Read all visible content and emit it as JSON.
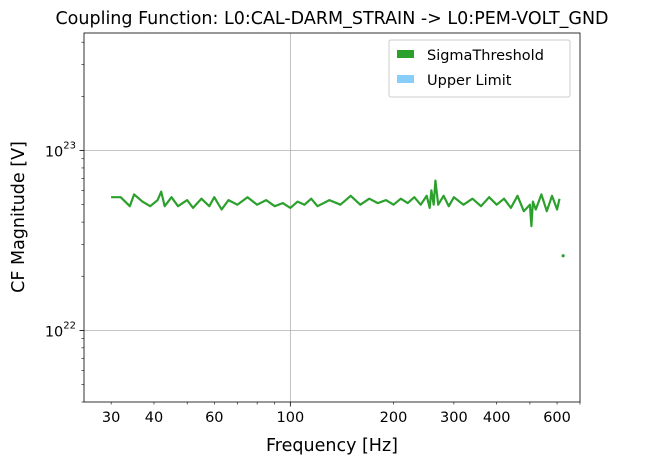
{
  "chart_data": {
    "type": "line",
    "title": "Coupling Function: L0:CAL-DARM_STRAIN -> L0:PEM-VOLT_GND",
    "xlabel": "Frequency [Hz]",
    "ylabel": "CF Magnitude [V]",
    "xscale": "log",
    "yscale": "log",
    "xlim": [
      25,
      700
    ],
    "ylim": [
      4e+21,
      4.5e+23
    ],
    "grid": true,
    "legend_position": "top-right",
    "x_ticks": [
      {
        "value": 30,
        "label": "30"
      },
      {
        "value": 40,
        "label": "40"
      },
      {
        "value": 60,
        "label": "60"
      },
      {
        "value": 100,
        "label": "100"
      },
      {
        "value": 200,
        "label": "200"
      },
      {
        "value": 300,
        "label": "300"
      },
      {
        "value": 400,
        "label": "400"
      },
      {
        "value": 600,
        "label": "600"
      }
    ],
    "y_ticks": [
      {
        "value": 1e+22,
        "base": "10",
        "exp": "22"
      },
      {
        "value": 1e+23,
        "base": "10",
        "exp": "23"
      }
    ],
    "series": [
      {
        "name": "SigmaThreshold",
        "color": "#2ca02c",
        "x": [
          30,
          32,
          34,
          35,
          37,
          39,
          41,
          42,
          43,
          45,
          47,
          50,
          52,
          55,
          58,
          60,
          63,
          66,
          70,
          75,
          80,
          85,
          90,
          95,
          100,
          105,
          110,
          115,
          120,
          130,
          140,
          150,
          160,
          170,
          180,
          190,
          200,
          210,
          220,
          230,
          240,
          250,
          255,
          258,
          262,
          265,
          270,
          280,
          290,
          300,
          320,
          340,
          360,
          380,
          400,
          420,
          440,
          460,
          480,
          500,
          505,
          510,
          520,
          540,
          560,
          580,
          600,
          610
        ],
        "y": [
          5.5e+22,
          5.5e+22,
          4.9e+22,
          5.7e+22,
          5.2e+22,
          4.9e+22,
          5.3e+22,
          5.9e+22,
          4.9e+22,
          5.5e+22,
          4.9e+22,
          5.3e+22,
          4.8e+22,
          5.4e+22,
          4.9e+22,
          5.5e+22,
          4.7e+22,
          5.3e+22,
          5e+22,
          5.5e+22,
          5e+22,
          5.3e+22,
          4.9e+22,
          5.1e+22,
          4.8e+22,
          5.2e+22,
          5e+22,
          5.4e+22,
          4.9e+22,
          5.3e+22,
          5e+22,
          5.6e+22,
          5e+22,
          5.4e+22,
          5.1e+22,
          5.3e+22,
          5e+22,
          5.4e+22,
          5.1e+22,
          5.5e+22,
          5e+22,
          5.6e+22,
          4.8e+22,
          6e+22,
          5e+22,
          6.8e+22,
          5e+22,
          5.6e+22,
          4.9e+22,
          5.5e+22,
          5e+22,
          5.4e+22,
          4.9e+22,
          5.5e+22,
          5e+22,
          5.4e+22,
          4.8e+22,
          5.6e+22,
          4.6e+22,
          5e+22,
          3.8e+22,
          5.2e+22,
          4.7e+22,
          5.7e+22,
          4.6e+22,
          5.6e+22,
          4.7e+22,
          5.4e+22
        ]
      },
      {
        "name": "Upper Limit",
        "color": "#87cefa",
        "x": [],
        "y": []
      }
    ],
    "outliers": [
      {
        "x": 625,
        "y": 2.6e+22,
        "series": "SigmaThreshold"
      }
    ]
  }
}
